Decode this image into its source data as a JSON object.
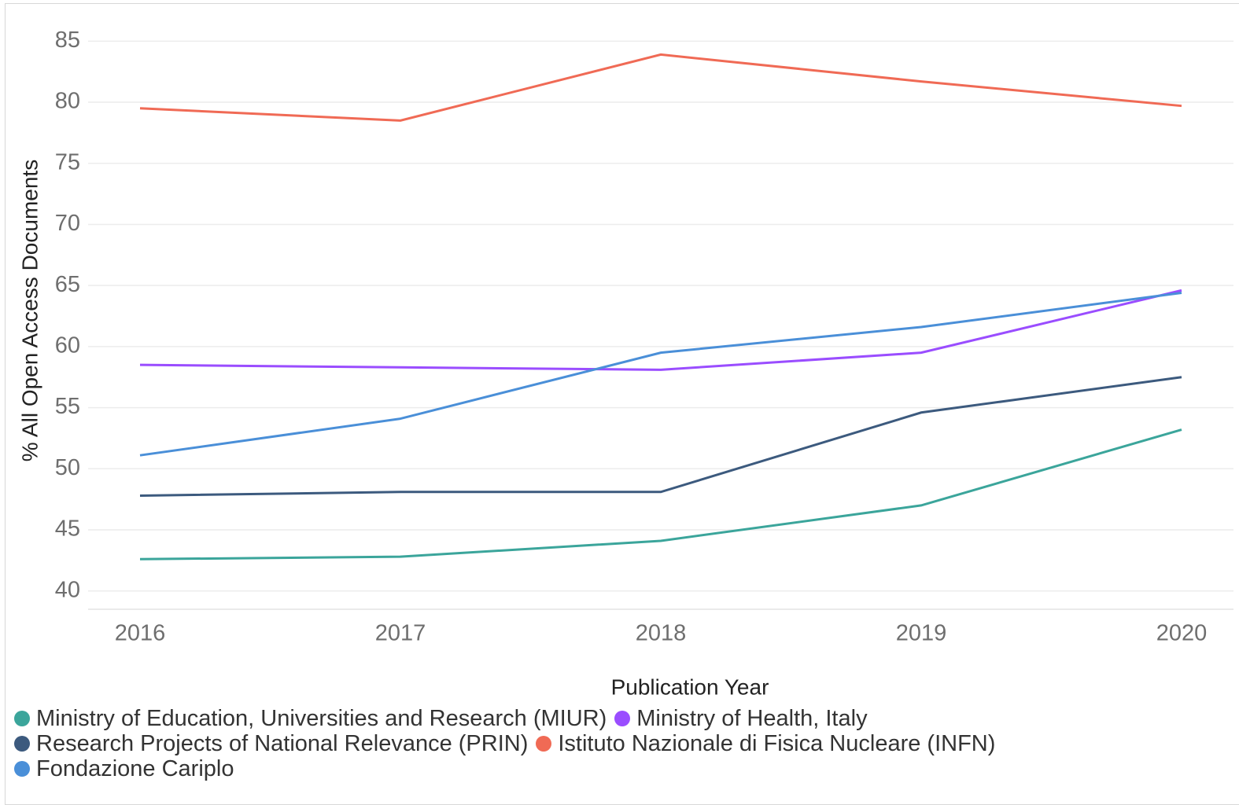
{
  "chart_data": {
    "type": "line",
    "xlabel": "Publication Year",
    "ylabel": "% All Open Access Documents",
    "categories": [
      "2016",
      "2017",
      "2018",
      "2019",
      "2020"
    ],
    "series": [
      {
        "name": "Ministry of Education, Universities and Research (MIUR)",
        "color": "#3ba59b",
        "values": [
          42.6,
          42.8,
          44.1,
          47.0,
          53.2
        ]
      },
      {
        "name": "Ministry of Health, Italy",
        "color": "#9a4dff",
        "values": [
          58.5,
          58.3,
          58.1,
          59.5,
          64.6
        ]
      },
      {
        "name": "Research Projects of National Relevance (PRIN)",
        "color": "#3c5a7e",
        "values": [
          47.8,
          48.1,
          48.1,
          54.6,
          57.5
        ]
      },
      {
        "name": "Istituto Nazionale di Fisica Nucleare (INFN)",
        "color": "#f06a55",
        "values": [
          79.5,
          78.5,
          83.9,
          81.7,
          79.7
        ]
      },
      {
        "name": "Fondazione Cariplo",
        "color": "#4a8fd8",
        "values": [
          51.1,
          54.1,
          59.5,
          61.6,
          64.4
        ]
      }
    ],
    "ylim": [
      38.5,
      86.5
    ],
    "yticks": [
      40,
      45,
      50,
      55,
      60,
      65,
      70,
      75,
      80,
      85
    ],
    "grid": true
  }
}
